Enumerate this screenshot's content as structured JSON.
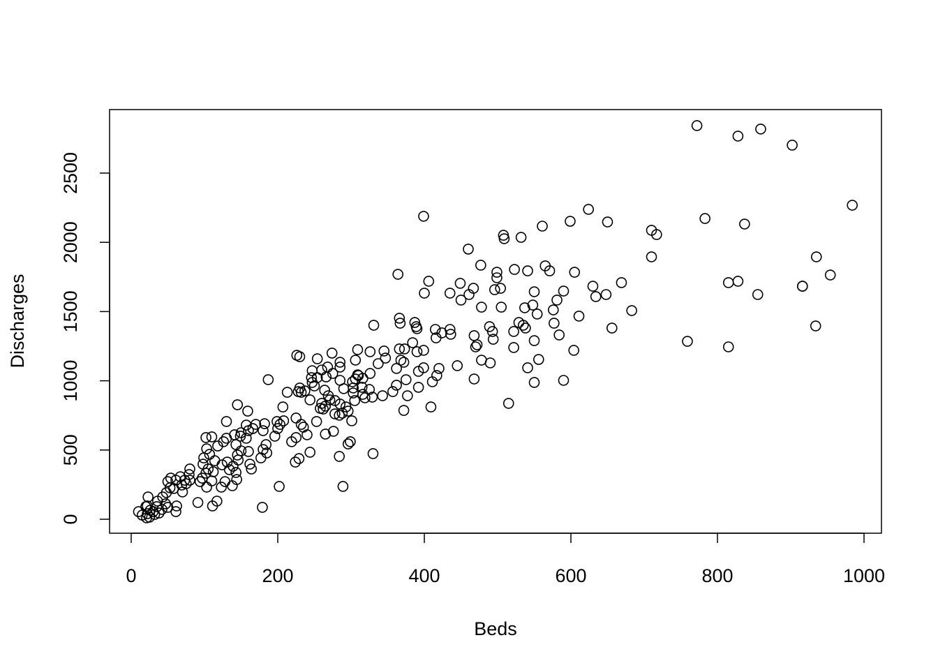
{
  "chart_data": {
    "type": "scatter",
    "x_label": "Beds",
    "y_label": "Discharges",
    "xlim": [
      -29.5,
      1023.8
    ],
    "ylim": [
      -100.8,
      2958.7
    ],
    "xticks": [
      0,
      200,
      400,
      600,
      800,
      1000
    ],
    "yticks": [
      0,
      500,
      1000,
      1500,
      2000,
      2500
    ],
    "color": "#000000",
    "x": [
      772,
      828,
      859,
      902,
      984,
      399,
      624,
      561,
      599,
      650,
      508,
      532,
      509,
      710,
      717,
      783,
      837,
      460,
      710,
      935,
      477,
      565,
      571,
      541,
      523,
      499,
      605,
      406,
      499,
      669,
      815,
      828,
      916,
      954,
      364,
      449,
      467,
      504,
      496,
      435,
      400,
      461,
      450,
      550,
      590,
      630,
      634,
      648,
      855,
      478,
      505,
      537,
      548,
      581,
      576,
      554,
      683,
      366,
      367,
      387,
      389,
      390,
      331,
      415,
      424,
      435,
      416,
      436,
      529,
      535,
      538,
      522,
      489,
      493,
      577,
      611,
      656,
      468,
      472,
      470,
      494,
      550,
      584,
      522,
      478,
      490,
      541,
      556,
      604,
      759,
      815,
      934,
      916,
      445,
      420,
      468,
      550,
      590,
      515,
      409,
      417,
      411,
      399,
      399,
      373,
      366,
      345,
      326,
      309,
      274,
      226,
      230,
      254,
      306,
      337,
      347,
      368,
      372,
      384,
      390,
      392,
      362,
      362,
      375,
      392,
      377,
      357,
      372,
      343,
      329,
      316,
      306,
      310,
      316,
      285,
      285,
      326,
      309,
      302,
      315,
      303,
      290,
      264,
      250,
      247,
      247,
      260,
      268,
      275,
      285,
      266,
      254,
      246,
      187,
      230,
      228,
      237,
      213,
      232,
      269,
      271,
      278,
      244,
      260,
      265,
      262,
      258,
      285,
      293,
      296,
      288,
      301,
      305,
      319,
      325,
      303,
      278,
      284,
      253,
      145,
      159,
      207,
      225,
      232,
      240,
      235,
      199,
      203,
      208,
      200,
      182,
      180,
      170,
      166,
      157,
      160,
      150,
      149,
      141,
      157,
      130,
      130,
      110,
      126,
      118,
      143,
      150,
      145,
      146,
      131,
      160,
      162,
      164,
      180,
      177,
      185,
      184,
      196,
      219,
      225,
      224,
      229,
      244,
      265,
      276,
      202,
      179,
      289,
      296,
      299,
      284,
      330,
      102,
      103,
      107,
      99,
      98,
      105,
      102,
      97,
      94,
      103,
      91,
      111,
      117,
      123,
      128,
      134,
      124,
      139,
      138,
      144,
      143,
      112,
      110,
      114,
      80,
      79,
      73,
      69,
      67,
      61,
      54,
      50,
      53,
      48,
      58,
      70,
      43,
      36,
      35,
      42,
      30,
      23,
      22,
      26,
      15,
      10,
      21,
      22,
      25,
      61,
      62,
      47,
      50,
      38,
      32,
      20,
      80,
      75
    ],
    "values": [
      2843,
      2767,
      2818,
      2702,
      2268,
      2188,
      2238,
      2117,
      2152,
      2147,
      2051,
      2036,
      2026,
      2087,
      2056,
      2172,
      2132,
      1951,
      1895,
      1895,
      1835,
      1830,
      1794,
      1794,
      1804,
      1784,
      1784,
      1719,
      1744,
      1709,
      1709,
      1719,
      1683,
      1764,
      1769,
      1704,
      1668,
      1668,
      1658,
      1633,
      1633,
      1623,
      1583,
      1643,
      1648,
      1683,
      1608,
      1623,
      1623,
      1532,
      1532,
      1527,
      1547,
      1583,
      1512,
      1482,
      1507,
      1452,
      1416,
      1421,
      1391,
      1376,
      1401,
      1371,
      1346,
      1371,
      1310,
      1336,
      1421,
      1401,
      1381,
      1356,
      1391,
      1356,
      1416,
      1467,
      1381,
      1326,
      1260,
      1245,
      1300,
      1290,
      1331,
      1240,
      1149,
      1129,
      1094,
      1154,
      1220,
      1285,
      1245,
      1396,
      1683,
      1109,
      1089,
      1013,
      988,
      1003,
      837,
      811,
      1038,
      993,
      1094,
      1220,
      1230,
      1230,
      1215,
      1210,
      1225,
      1200,
      1184,
      1174,
      1159,
      1149,
      1124,
      1164,
      1149,
      1134,
      1275,
      1210,
      1068,
      1089,
      968,
      1008,
      953,
      892,
      922,
      786,
      892,
      882,
      902,
      1013,
      1038,
      1018,
      1134,
      1099,
      1053,
      1043,
      993,
      953,
      948,
      943,
      932,
      963,
      988,
      1073,
      1078,
      1099,
      1053,
      1003,
      1028,
      1023,
      1023,
      1008,
      948,
      922,
      927,
      917,
      917,
      892,
      862,
      857,
      862,
      837,
      817,
      796,
      801,
      832,
      811,
      781,
      766,
      711,
      857,
      877,
      937,
      912,
      761,
      751,
      706,
      827,
      781,
      811,
      731,
      685,
      610,
      665,
      706,
      685,
      711,
      655,
      690,
      640,
      685,
      655,
      680,
      640,
      625,
      600,
      610,
      585,
      706,
      585,
      595,
      560,
      529,
      539,
      494,
      464,
      428,
      413,
      489,
      398,
      363,
      504,
      443,
      479,
      539,
      600,
      560,
      590,
      413,
      438,
      484,
      615,
      635,
      237,
      86,
      237,
      544,
      560,
      454,
      474,
      590,
      509,
      469,
      443,
      398,
      363,
      333,
      297,
      272,
      232,
      121,
      96,
      131,
      232,
      272,
      358,
      393,
      383,
      242,
      287,
      338,
      343,
      277,
      423,
      363,
      323,
      282,
      247,
      307,
      282,
      297,
      272,
      227,
      192,
      222,
      197,
      161,
      131,
      91,
      71,
      55,
      161,
      96,
      65,
      30,
      55,
      10,
      40,
      15,
      55,
      96,
      111,
      86,
      45,
      35,
      91,
      282,
      257
    ]
  }
}
